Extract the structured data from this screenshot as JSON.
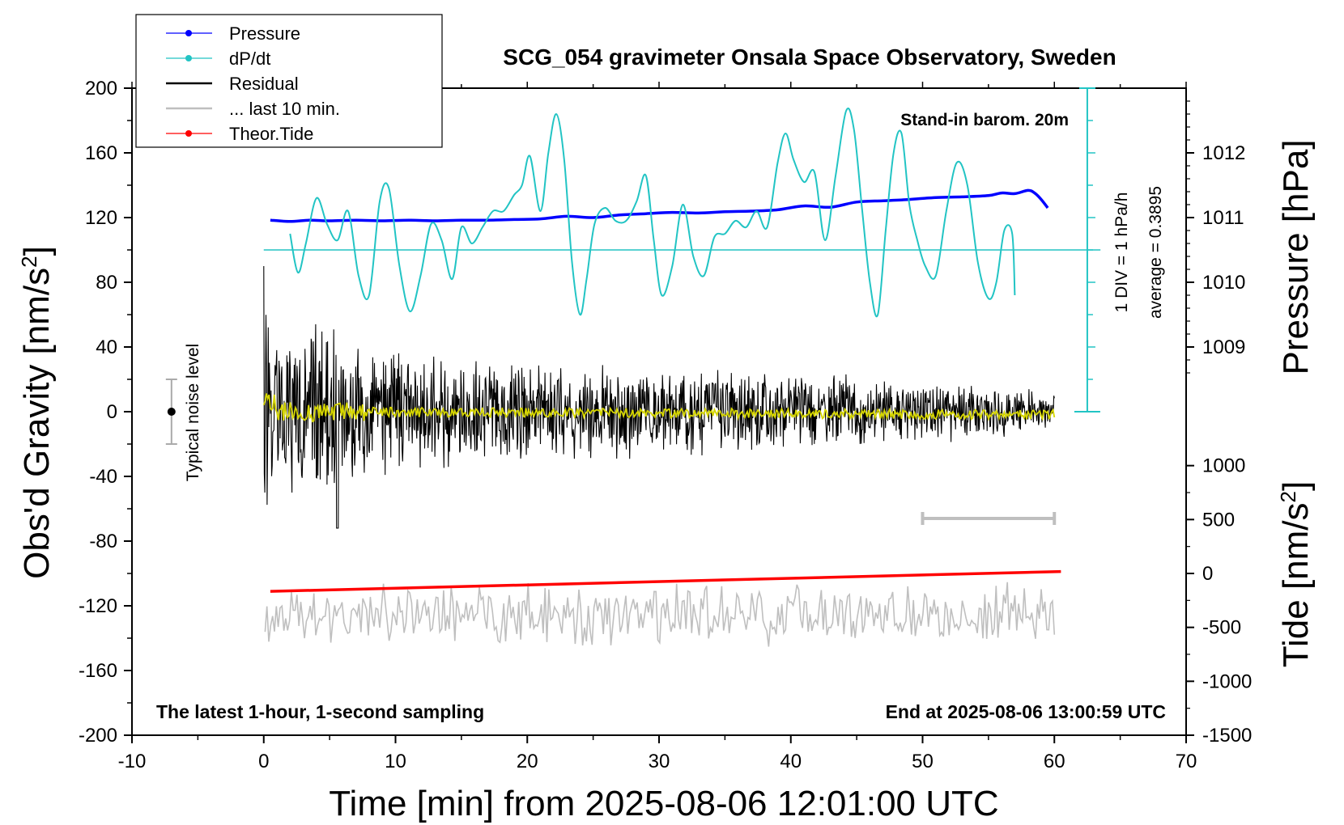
{
  "chart_data": {
    "type": "line",
    "title": "SCG_054 gravimeter Onsala Space Observatory, Sweden",
    "xlabel": "Time [min] from 2025-08-06 12:01:00 UTC",
    "ylabel": "Obs'd Gravity [nm/s",
    "ylabel_sup": "2",
    "ylabel_close": "]",
    "right_label_pressure": "Pressure [hPa]",
    "right_label_tide": "Tide [nm/s",
    "right_label_tide_sup": "2",
    "right_label_tide_close": "]",
    "xlim": [
      -10,
      70
    ],
    "ylim": [
      -200,
      200
    ],
    "x_ticks": [
      "-10",
      "0",
      "10",
      "20",
      "30",
      "40",
      "50",
      "60",
      "70"
    ],
    "y_ticks": [
      "200",
      "160",
      "120",
      "80",
      "40",
      "0",
      "-40",
      "-80",
      "-120",
      "-160",
      "-200"
    ],
    "pressure_ticks": [
      "1012",
      "1011",
      "1010",
      "1009"
    ],
    "pressure_tick_values": [
      1012,
      1011,
      1010,
      1009
    ],
    "pressure_axis_map": {
      "p1012": 1012,
      "g1012": 160,
      "per_hPa": 40
    },
    "tide_ticks": [
      "1000",
      "500",
      "0",
      "-500",
      "-1000",
      "-1500"
    ],
    "tide_tick_values": [
      1000,
      500,
      0,
      -500,
      -1000,
      -1500
    ],
    "tide_axis_map": {
      "t0": 0,
      "g_t0": -100,
      "per_500": 33.33
    },
    "annotations": {
      "stand_in": "Stand-in barom. 20m",
      "div_label": "1 DIV = 1 hPa/h",
      "average_label": "average = 0.3895",
      "noise_label": "Typical noise level",
      "latest": "The latest 1-hour, 1-second sampling",
      "end_at": "End at 2025-08-06 13:00:59 UTC"
    },
    "legend": [
      {
        "label": "Pressure",
        "color": "#0000ff",
        "marker": true
      },
      {
        "label": "dP/dt",
        "color": "#22c4c4",
        "marker": true
      },
      {
        "label": "Residual",
        "color": "#000000",
        "marker": false
      },
      {
        "label": "... last 10 min.",
        "color": "#bfbfbf",
        "marker": false
      },
      {
        "label": "Theor.Tide",
        "color": "#ff0000",
        "marker": true
      }
    ],
    "series": [
      {
        "name": "Pressure",
        "color": "#0000ff",
        "units": "hPa",
        "x": [
          0.5,
          2,
          3.5,
          5,
          7,
          9,
          11,
          13,
          15,
          17,
          19,
          21,
          23,
          25,
          27,
          29,
          31,
          33,
          35,
          37,
          39,
          41,
          43,
          45,
          47,
          49,
          51,
          53,
          55,
          56,
          57,
          58,
          58.5,
          59,
          59.5
        ],
        "values": [
          1010.96,
          1010.94,
          1010.96,
          1010.95,
          1010.96,
          1010.95,
          1010.96,
          1010.95,
          1010.96,
          1010.96,
          1010.97,
          1010.98,
          1011.02,
          1011.0,
          1011.04,
          1011.06,
          1011.08,
          1011.07,
          1011.09,
          1011.1,
          1011.12,
          1011.18,
          1011.16,
          1011.24,
          1011.26,
          1011.28,
          1011.31,
          1011.32,
          1011.34,
          1011.38,
          1011.37,
          1011.42,
          1011.38,
          1011.28,
          1011.15
        ]
      },
      {
        "name": "dP/dt",
        "color": "#22c4c4",
        "units": "hPa/h (1 DIV = 1 hPa/h, zero at gravity 100)",
        "x": [
          2,
          2.6,
          3.2,
          4,
          4.8,
          5.6,
          6.4,
          7.2,
          8,
          8.8,
          9.5,
          10.3,
          11.1,
          11.9,
          12.7,
          13.5,
          14.3,
          15,
          15.8,
          16.6,
          17.4,
          18.2,
          19,
          19.6,
          20.2,
          21,
          21.6,
          22.2,
          22.8,
          23.4,
          24,
          24.5,
          25.1,
          25.9,
          26.7,
          27.5,
          28.3,
          29,
          29.6,
          30.2,
          31,
          31.8,
          32.6,
          33.4,
          34.2,
          35,
          35.8,
          36.6,
          37.4,
          38.2,
          39,
          39.6,
          40.2,
          41,
          41.8,
          42.6,
          43.4,
          44.2,
          44.8,
          45.4,
          46,
          46.6,
          47.2,
          47.8,
          48.4,
          49,
          49.6,
          50.2,
          51,
          51.8,
          52.6,
          53.4,
          54.2,
          55,
          55.6,
          56.2,
          56.8,
          57
        ],
        "values": [
          0.5,
          -0.7,
          0.2,
          1.6,
          0.8,
          0.3,
          1.2,
          -0.8,
          -1.4,
          1.5,
          1.9,
          -0.5,
          -1.9,
          -0.8,
          0.8,
          0.3,
          -0.9,
          0.7,
          0.2,
          0.7,
          1.2,
          1.2,
          1.7,
          2.0,
          2.9,
          1.2,
          3.0,
          4.2,
          2.8,
          -0.4,
          -2.0,
          -0.9,
          0.8,
          1.3,
          0.9,
          0.9,
          1.5,
          2.3,
          0.3,
          -1.4,
          -0.5,
          1.4,
          -0.2,
          -0.8,
          0.4,
          0.5,
          0.9,
          0.7,
          1.2,
          0.7,
          2.7,
          3.6,
          2.8,
          2.1,
          2.4,
          0.3,
          2.3,
          4.3,
          3.7,
          1.3,
          -1.0,
          -2.0,
          0.6,
          3.0,
          3.6,
          1.4,
          0.3,
          -0.5,
          -0.8,
          1.2,
          2.7,
          2.0,
          -0.4,
          -1.5,
          -1.0,
          0.6,
          0.5,
          -1.4
        ]
      },
      {
        "name": "Theor.Tide",
        "color": "#ff0000",
        "units": "nm/s2",
        "x": [
          0.5,
          60.5
        ],
        "values": [
          -166,
          18
        ]
      },
      {
        "name": "Residual",
        "color": "#000000",
        "units": "nm/s2",
        "x_range": [
          0,
          60
        ],
        "envelope_x": [
          0,
          1,
          2,
          3,
          4,
          5,
          6,
          7,
          8,
          10,
          15,
          20,
          25,
          30,
          40,
          45,
          50,
          55,
          60
        ],
        "envelope_amp": [
          70,
          48,
          55,
          58,
          62,
          58,
          55,
          48,
          45,
          40,
          36,
          35,
          32,
          30,
          30,
          24,
          20,
          18,
          16
        ]
      },
      {
        "name": "... last 10 min.",
        "color": "#bfbfbf",
        "units": "nm/s2 (plotted offset near -125)",
        "x_range": [
          0,
          60
        ],
        "baseline": -125,
        "amp": 22
      }
    ],
    "scale_bar_x": [
      50,
      60
    ],
    "scale_bar_y": -66,
    "noise_bar_x": -7,
    "noise_bar_y": [
      -20,
      20
    ]
  }
}
